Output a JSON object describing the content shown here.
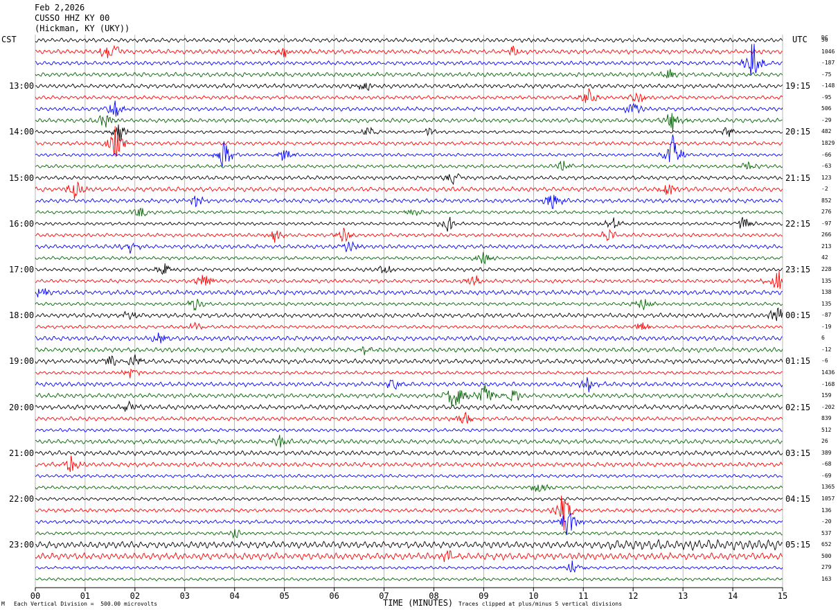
{
  "header": {
    "date": "Feb 2,2026",
    "station": "CUSSO HHZ KY 00",
    "location": "(Hickman, KY (UKY))"
  },
  "left_axis_label": "CST",
  "right_axis_label": "UTC",
  "dc_label": "DC",
  "footer": {
    "scale_note": "Each Vertical Division =  500.00 microvolts",
    "clip_note": "Traces clipped at plus/minus 5 vertical divisions",
    "corner_mark": "M"
  },
  "chart_data": {
    "type": "line",
    "xlabel": "TIME (MINUTES)",
    "xlim": [
      0,
      15
    ],
    "x_ticks": [
      "00",
      "01",
      "02",
      "03",
      "04",
      "05",
      "06",
      "07",
      "08",
      "09",
      "10",
      "11",
      "12",
      "13",
      "14",
      "15"
    ],
    "trace_minutes": 15,
    "trace_count": 48,
    "trace_colors": [
      "#000000",
      "#ff0000",
      "#0000ff",
      "#006400"
    ],
    "cst_hour_labels": [
      "13:00",
      "14:00",
      "15:00",
      "16:00",
      "17:00",
      "18:00",
      "19:00",
      "20:00",
      "21:00",
      "22:00",
      "23:00"
    ],
    "utc_hour_labels": [
      "19:15",
      "20:15",
      "21:15",
      "22:15",
      "23:15",
      "00:15",
      "01:15",
      "02:15",
      "03:15",
      "04:15",
      "05:15"
    ],
    "dc_offsets": [
      "50",
      "1046",
      "-187",
      "-75",
      "-148",
      "-95",
      "506",
      "-29",
      "482",
      "1829",
      "-66",
      "-63",
      "123",
      "-2",
      "852",
      "276",
      "-97",
      "266",
      "213",
      "42",
      "228",
      "135",
      "138",
      "135",
      "-87",
      "-19",
      "6",
      "-12",
      "-6",
      "1436",
      "-168",
      "159",
      "-202",
      "839",
      "512",
      "26",
      "389",
      "-68",
      "-69",
      "1365",
      "1057",
      "136",
      "-20",
      "537",
      "652",
      "500",
      "279",
      "163"
    ]
  }
}
